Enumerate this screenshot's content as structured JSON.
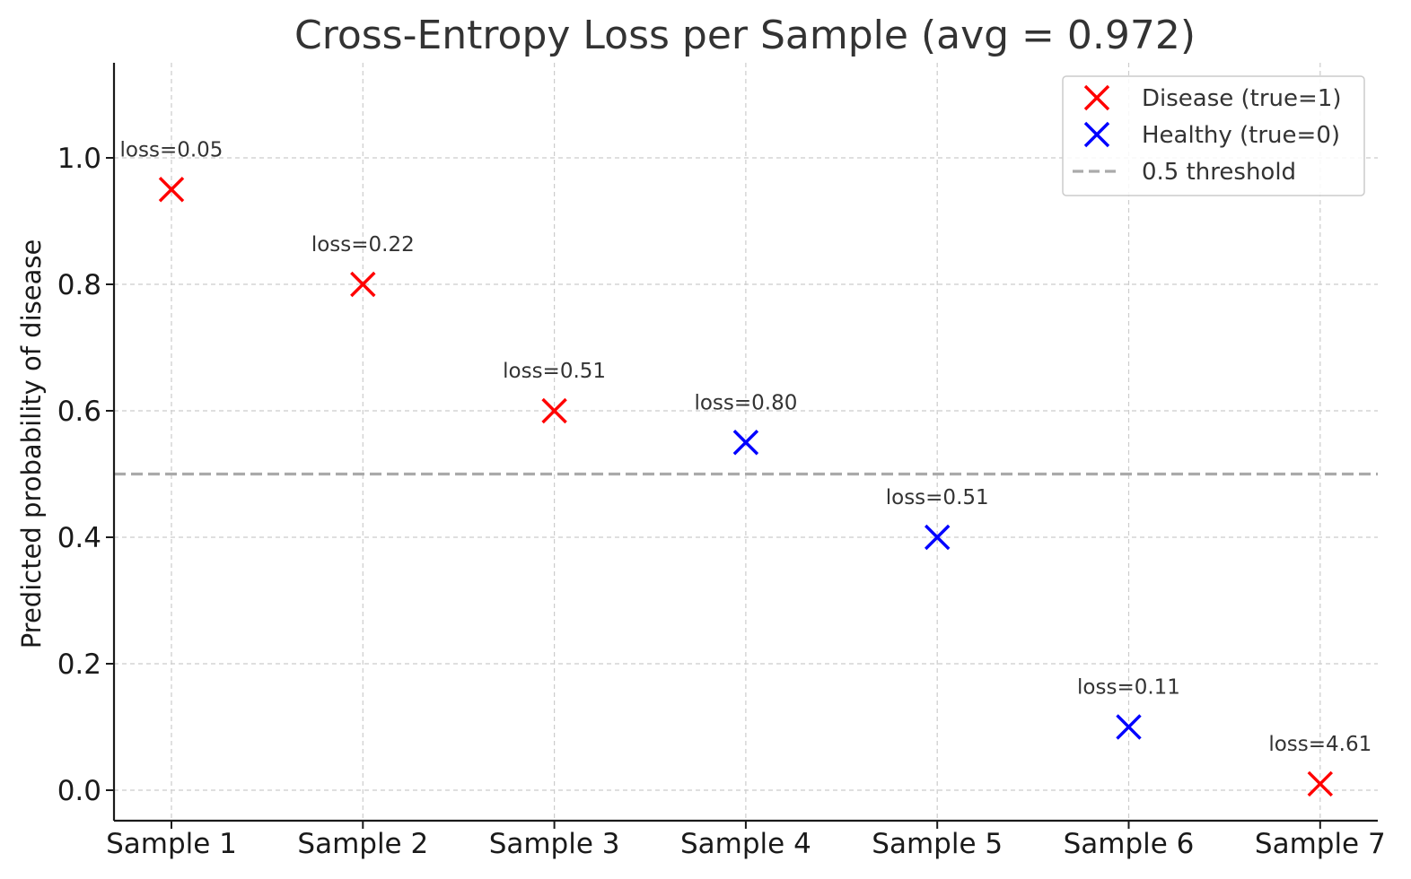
{
  "chart_data": {
    "type": "scatter",
    "title": "Cross-Entropy Loss per Sample (avg = 0.972)",
    "xlabel": "",
    "ylabel": "Predicted probability of disease",
    "categories": [
      "Sample 1",
      "Sample 2",
      "Sample 3",
      "Sample 4",
      "Sample 5",
      "Sample 6",
      "Sample 7"
    ],
    "ylim": [
      -0.05,
      1.15
    ],
    "yticks": [
      "0.0",
      "0.2",
      "0.4",
      "0.6",
      "0.8",
      "1.0"
    ],
    "grid": true,
    "legend_position": "top-right",
    "series": [
      {
        "name": "Disease (true=1)",
        "color": "#ff0000",
        "marker": "x",
        "points": [
          {
            "category": "Sample 1",
            "y": 0.95,
            "label": "loss=0.05"
          },
          {
            "category": "Sample 2",
            "y": 0.8,
            "label": "loss=0.22"
          },
          {
            "category": "Sample 3",
            "y": 0.6,
            "label": "loss=0.51"
          },
          {
            "category": "Sample 7",
            "y": 0.01,
            "label": "loss=4.61"
          }
        ]
      },
      {
        "name": "Healthy (true=0)",
        "color": "#0000ff",
        "marker": "x",
        "points": [
          {
            "category": "Sample 4",
            "y": 0.55,
            "label": "loss=0.80"
          },
          {
            "category": "Sample 5",
            "y": 0.4,
            "label": "loss=0.51"
          },
          {
            "category": "Sample 6",
            "y": 0.1,
            "label": "loss=0.11"
          }
        ]
      }
    ],
    "reference_lines": [
      {
        "name": "0.5 threshold",
        "y": 0.5,
        "color": "#aaaaaa",
        "style": "dashed"
      }
    ]
  }
}
